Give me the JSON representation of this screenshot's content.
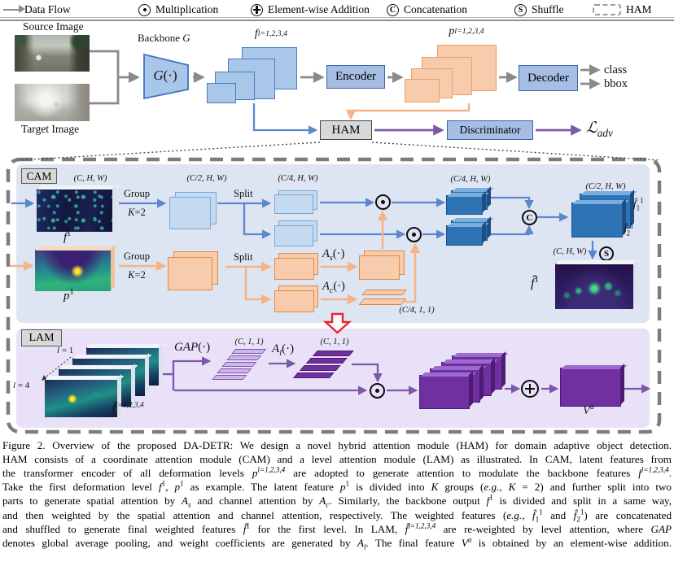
{
  "ops": {
    "concat_letter": "C",
    "shuffle_letter": "S"
  },
  "legend": {
    "items": [
      {
        "icon": "arrow-right-icon",
        "label": "Data Flow"
      },
      {
        "icon": "multiply-icon",
        "label": "Multiplication"
      },
      {
        "icon": "add-icon",
        "label": "Element-wise Addition"
      },
      {
        "icon": "concat-icon",
        "label": "Concatenation"
      },
      {
        "icon": "shuffle-icon",
        "label": "Shuffle"
      },
      {
        "icon": "ham-dashed-icon",
        "label": "HAM"
      }
    ]
  },
  "dims": {
    "chw": "(C, H, W)",
    "c2hw": "(C/2, H, W)",
    "c4hw": "(C/4, H, W)",
    "c411": "(C/4, 1, 1)",
    "c11": "(C, 1, 1)"
  },
  "pipeline": {
    "source_label": "Source Image",
    "target_label": "Target Image",
    "backbone_label": [
      {
        "t": "Backbone "
      },
      {
        "t": "G",
        "s": "i"
      }
    ],
    "g_fn": [
      {
        "t": "G",
        "s": "i"
      },
      {
        "t": "(·)"
      }
    ],
    "f_multi": [
      {
        "t": "f",
        "s": "i"
      },
      {
        "t": "l=1,2,3,4",
        "s": "supi"
      }
    ],
    "p_multi": [
      {
        "t": "p",
        "s": "i"
      },
      {
        "t": "l=1,2,3,4",
        "s": "supi"
      }
    ],
    "encoder": "Encoder",
    "decoder": "Decoder",
    "discriminator": "Discriminator",
    "ham": "HAM",
    "class_label": "class",
    "bbox_label": "bbox",
    "l_adv": [
      {
        "t": "ℒ",
        "s": "i"
      },
      {
        "t": "adv",
        "s": "subi"
      }
    ]
  },
  "cam": {
    "tag": "CAM",
    "group": "Group",
    "k2": [
      {
        "t": "K",
        "s": "i"
      },
      {
        "t": "=2"
      }
    ],
    "split": "Split",
    "f1": [
      {
        "t": "f",
        "s": "i"
      },
      {
        "t": "1",
        "s": "sup"
      }
    ],
    "p1": [
      {
        "t": "p",
        "s": "i"
      },
      {
        "t": "1",
        "s": "sup"
      }
    ],
    "a_s": [
      {
        "t": "A",
        "s": "i"
      },
      {
        "t": "s",
        "s": "subi"
      },
      {
        "t": "(·)"
      }
    ],
    "a_c": [
      {
        "t": "A",
        "s": "i"
      },
      {
        "t": "c",
        "s": "subi"
      },
      {
        "t": "(·)"
      }
    ],
    "fhat_1_1": [
      {
        "t": "f̂",
        "s": "i"
      },
      {
        "t": "1",
        "s": "sub"
      },
      {
        "t": "1",
        "s": "sup"
      }
    ],
    "fhat_2_1": [
      {
        "t": "f̂",
        "s": "i"
      },
      {
        "t": "2",
        "s": "sub"
      },
      {
        "t": "1",
        "s": "sup"
      }
    ],
    "fhat_1": [
      {
        "t": "f̂",
        "s": "i"
      },
      {
        "t": "1",
        "s": "sup"
      }
    ]
  },
  "lam": {
    "tag": "LAM",
    "l_eq_1": [
      {
        "t": "l",
        "s": "i"
      },
      {
        "t": " = 1"
      }
    ],
    "l_eq_4": [
      {
        "t": "l",
        "s": "i"
      },
      {
        "t": " = 4"
      }
    ],
    "fhat_multi": [
      {
        "t": "f̂",
        "s": "i"
      },
      {
        "t": "l=1,2,3,4",
        "s": "supi"
      }
    ],
    "gap_fn": [
      {
        "t": "GAP",
        "s": "i"
      },
      {
        "t": "(·)"
      }
    ],
    "a_l": [
      {
        "t": "A",
        "s": "i"
      },
      {
        "t": "l",
        "s": "subi"
      },
      {
        "t": "(·)"
      }
    ],
    "v_a": [
      {
        "t": "V",
        "s": "i"
      },
      {
        "t": "a",
        "s": "supi"
      }
    ]
  },
  "caption": {
    "lines": [
      [
        {
          "t": "Figure 2.  Overview of the proposed DA-DETR: We design a novel hybrid attention module (HAM) for domain adaptive object detection."
        }
      ],
      [
        {
          "t": "HAM consists of a coordinate attention module (CAM) and a level attention module (LAM) as illustrated.  In CAM, latent features from"
        }
      ],
      [
        {
          "t": "the transformer encoder of all deformation levels "
        },
        {
          "t": "p",
          "s": "i"
        },
        {
          "t": "l=1,2,3,4",
          "s": "supi"
        },
        {
          "t": " are adopted to generate attention to modulate the backbone features "
        },
        {
          "t": "f",
          "s": "i"
        },
        {
          "t": "l=1,2,3,4",
          "s": "supi"
        },
        {
          "t": "."
        }
      ],
      [
        {
          "t": "Take the first deformation level "
        },
        {
          "t": "f",
          "s": "i"
        },
        {
          "t": "1",
          "s": "sup"
        },
        {
          "t": ", "
        },
        {
          "t": "p",
          "s": "i"
        },
        {
          "t": "1",
          "s": "sup"
        },
        {
          "t": " as example. The latent feature "
        },
        {
          "t": "p",
          "s": "i"
        },
        {
          "t": "1",
          "s": "sup"
        },
        {
          "t": " is divided into "
        },
        {
          "t": "K",
          "s": "i"
        },
        {
          "t": " groups ("
        },
        {
          "t": "e.g.",
          "s": "i"
        },
        {
          "t": ", "
        },
        {
          "t": "K",
          "s": "i"
        },
        {
          "t": " = 2) and further split into two"
        }
      ],
      [
        {
          "t": "parts to generate spatial attention by "
        },
        {
          "t": "A",
          "s": "i"
        },
        {
          "t": "s",
          "s": "subi"
        },
        {
          "t": " and channel attention by "
        },
        {
          "t": "A",
          "s": "i"
        },
        {
          "t": "c",
          "s": "subi"
        },
        {
          "t": ". Similarly, the backbone output "
        },
        {
          "t": "f",
          "s": "i"
        },
        {
          "t": "1",
          "s": "sup"
        },
        {
          "t": " is divided and split in a same way,"
        }
      ],
      [
        {
          "t": "and then weighted by the spatial attention and channel attention, respectively. The weighted features ("
        },
        {
          "t": "e.g.",
          "s": "i"
        },
        {
          "t": ", "
        },
        {
          "t": "f̂",
          "s": "i"
        },
        {
          "t": "1",
          "s": "sub"
        },
        {
          "t": "1",
          "s": "sup"
        },
        {
          "t": " and "
        },
        {
          "t": "f̂",
          "s": "i"
        },
        {
          "t": "2",
          "s": "sub"
        },
        {
          "t": "1",
          "s": "sup"
        },
        {
          "t": ") are concatenated"
        }
      ],
      [
        {
          "t": "and shuffled to generate final weighted features "
        },
        {
          "t": "f̂",
          "s": "i"
        },
        {
          "t": "1",
          "s": "sup"
        },
        {
          "t": " for the first level. In LAM, "
        },
        {
          "t": "f̂",
          "s": "i"
        },
        {
          "t": "l=1,2,3,4",
          "s": "supi"
        },
        {
          "t": " are re-weighted by level attention, where "
        },
        {
          "t": "GAP",
          "s": "i"
        }
      ],
      [
        {
          "t": "denotes global average pooling, and weight coefficients are generated by "
        },
        {
          "t": "A",
          "s": "i"
        },
        {
          "t": "l",
          "s": "subi"
        },
        {
          "t": ". The final feature "
        },
        {
          "t": "V",
          "s": "i"
        },
        {
          "t": "a",
          "s": "supi"
        },
        {
          "t": " is obtained by an element-wise addition."
        }
      ]
    ]
  }
}
